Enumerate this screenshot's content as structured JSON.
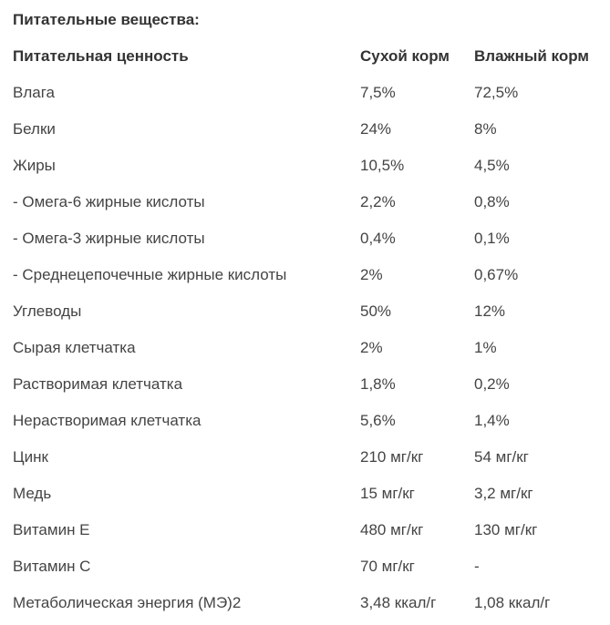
{
  "section": {
    "title": "Питательные вещества:"
  },
  "table": {
    "headers": {
      "name": "Питательная ценность",
      "dry": "Сухой корм",
      "wet": "Влажный корм"
    },
    "rows": [
      {
        "name": "Влага",
        "dry": "7,5%",
        "wet": "72,5%"
      },
      {
        "name": "Белки",
        "dry": "24%",
        "wet": "8%"
      },
      {
        "name": "Жиры",
        "dry": "10,5%",
        "wet": "4,5%"
      },
      {
        "name": "- Омега-6 жирные кислоты",
        "dry": "2,2%",
        "wet": "0,8%"
      },
      {
        "name": "- Омега-3 жирные кислоты",
        "dry": "0,4%",
        "wet": "0,1%"
      },
      {
        "name": "- Среднецепочечные жирные кислоты",
        "dry": "2%",
        "wet": "0,67%"
      },
      {
        "name": "Углеводы",
        "dry": "50%",
        "wet": "12%"
      },
      {
        "name": "Сырая клетчатка",
        "dry": "2%",
        "wet": "1%"
      },
      {
        "name": "Растворимая клетчатка",
        "dry": "1,8%",
        "wet": "0,2%"
      },
      {
        "name": "Нерастворимая клетчатка",
        "dry": "5,6%",
        "wet": "1,4%"
      },
      {
        "name": "Цинк",
        "dry": "210 мг/кг",
        "wet": "54 мг/кг"
      },
      {
        "name": "Медь",
        "dry": "15 мг/кг",
        "wet": "3,2 мг/кг"
      },
      {
        "name": "Витамин Е",
        "dry": "480 мг/кг",
        "wet": "130 мг/кг"
      },
      {
        "name": "Витамин С",
        "dry": "70 мг/кг",
        "wet": "-"
      },
      {
        "name": "Метаболическая энергия (МЭ)2",
        "dry": "3,48 ккал/г",
        "wet": "1,08 ккал/г"
      }
    ]
  },
  "colors": {
    "background": "#ffffff",
    "heading_text": "#333333",
    "body_text": "#444444"
  }
}
